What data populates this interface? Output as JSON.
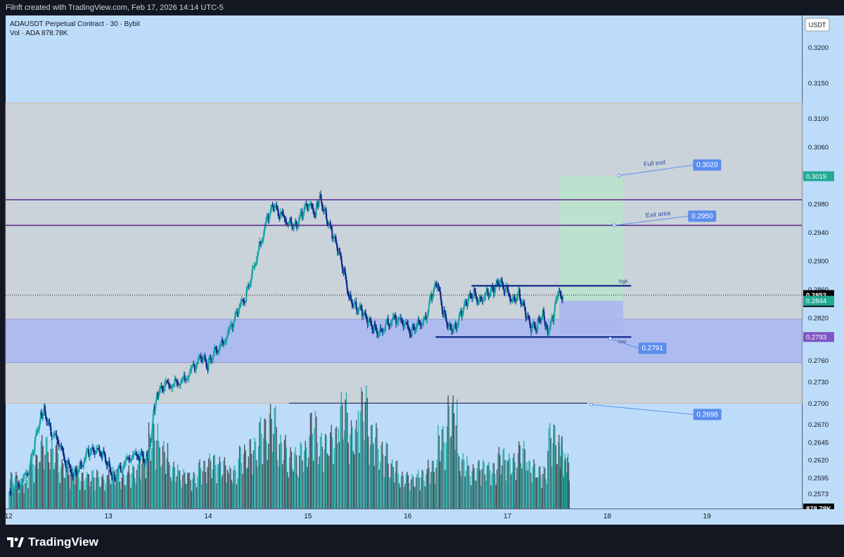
{
  "header": {
    "credit": "Filnft created with TradingView.com, Feb 17, 2026 14:14 UTC-5"
  },
  "legend": {
    "symbol_line": "ADAUSDT Perpetual Contract · 30 · Bybit",
    "volume_line": "Vol · ADA  878.78K"
  },
  "footer": {
    "brand": "TradingView",
    "brand_icon": "tradingview-logo-icon"
  },
  "colors": {
    "background": "#bcdcfa",
    "bull_candle": "#16a6a0",
    "bear_candle": "#0d2a8a",
    "buy_zone": "#ccd1d7",
    "demand_zone": "#aab8f2",
    "profit_box": "#b8e6cc",
    "loss_box": "#a9b6f0",
    "callout": "#5b8def",
    "price_label_current": "#000000",
    "price_label_green": "#22ab94",
    "price_label_purple": "#7e57c2",
    "resistance_line": "#5c2a8a",
    "range_line": "#0d2a8a"
  },
  "chart_data": {
    "type": "candlestick",
    "symbol": "ADAUSDT Perpetual Contract",
    "timeframe": "30",
    "exchange": "Bybit",
    "currency_button": "USDT",
    "y_range": [
      0.2552,
      0.3245
    ],
    "y_ticks": [
      "0.3200",
      "0.3150",
      "0.3100",
      "0.3060",
      "0.3020",
      "0.2980",
      "0.2940",
      "0.2900",
      "0.2860",
      "0.2820",
      "0.2790",
      "0.2760",
      "0.2730",
      "0.2700",
      "0.2670",
      "0.2645",
      "0.2620",
      "0.2595",
      "0.2573"
    ],
    "x_range": [
      11.97,
      19.95
    ],
    "x_ticks": [
      {
        "label": "12",
        "value": 12
      },
      {
        "label": "13",
        "value": 13
      },
      {
        "label": "14",
        "value": 14
      },
      {
        "label": "15",
        "value": 15
      },
      {
        "label": "16",
        "value": 16
      },
      {
        "label": "17",
        "value": 17
      },
      {
        "label": "18",
        "value": 18
      },
      {
        "label": "19",
        "value": 19
      }
    ],
    "price_path": [
      [
        12.0,
        0.2575
      ],
      [
        12.1,
        0.2583
      ],
      [
        12.2,
        0.26
      ],
      [
        12.26,
        0.264
      ],
      [
        12.32,
        0.268
      ],
      [
        12.36,
        0.2692
      ],
      [
        12.42,
        0.2662
      ],
      [
        12.5,
        0.2645
      ],
      [
        12.58,
        0.2615
      ],
      [
        12.66,
        0.26
      ],
      [
        12.72,
        0.2612
      ],
      [
        12.8,
        0.263
      ],
      [
        12.86,
        0.2632
      ],
      [
        12.94,
        0.263
      ],
      [
        13.0,
        0.2615
      ],
      [
        13.06,
        0.2595
      ],
      [
        13.12,
        0.2607
      ],
      [
        13.22,
        0.2622
      ],
      [
        13.32,
        0.2627
      ],
      [
        13.38,
        0.262
      ],
      [
        13.42,
        0.264
      ],
      [
        13.46,
        0.269
      ],
      [
        13.5,
        0.2712
      ],
      [
        13.56,
        0.2724
      ],
      [
        13.66,
        0.2728
      ],
      [
        13.76,
        0.2734
      ],
      [
        13.86,
        0.275
      ],
      [
        13.94,
        0.2764
      ],
      [
        14.0,
        0.2752
      ],
      [
        14.06,
        0.2772
      ],
      [
        14.14,
        0.2784
      ],
      [
        14.24,
        0.2807
      ],
      [
        14.3,
        0.2829
      ],
      [
        14.38,
        0.2849
      ],
      [
        14.44,
        0.2882
      ],
      [
        14.52,
        0.2922
      ],
      [
        14.6,
        0.296
      ],
      [
        14.66,
        0.2977
      ],
      [
        14.72,
        0.2965
      ],
      [
        14.82,
        0.2955
      ],
      [
        14.88,
        0.295
      ],
      [
        14.94,
        0.2965
      ],
      [
        15.0,
        0.2978
      ],
      [
        15.08,
        0.2968
      ],
      [
        15.12,
        0.2992
      ],
      [
        15.18,
        0.2966
      ],
      [
        15.24,
        0.294
      ],
      [
        15.3,
        0.2917
      ],
      [
        15.36,
        0.2887
      ],
      [
        15.42,
        0.2849
      ],
      [
        15.48,
        0.2837
      ],
      [
        15.54,
        0.2829
      ],
      [
        15.6,
        0.2815
      ],
      [
        15.66,
        0.2806
      ],
      [
        15.72,
        0.28
      ],
      [
        15.8,
        0.2813
      ],
      [
        15.88,
        0.2818
      ],
      [
        15.96,
        0.2812
      ],
      [
        16.04,
        0.28
      ],
      [
        16.1,
        0.2813
      ],
      [
        16.18,
        0.2817
      ],
      [
        16.24,
        0.285
      ],
      [
        16.3,
        0.2868
      ],
      [
        16.36,
        0.2827
      ],
      [
        16.42,
        0.2808
      ],
      [
        16.48,
        0.2806
      ],
      [
        16.54,
        0.2826
      ],
      [
        16.6,
        0.2842
      ],
      [
        16.66,
        0.2855
      ],
      [
        16.72,
        0.2845
      ],
      [
        16.8,
        0.2855
      ],
      [
        16.86,
        0.2858
      ],
      [
        16.92,
        0.2869
      ],
      [
        16.98,
        0.2861
      ],
      [
        17.06,
        0.2846
      ],
      [
        17.12,
        0.2854
      ],
      [
        17.18,
        0.2828
      ],
      [
        17.24,
        0.2805
      ],
      [
        17.3,
        0.2809
      ],
      [
        17.36,
        0.2829
      ],
      [
        17.4,
        0.28
      ],
      [
        17.46,
        0.2818
      ],
      [
        17.5,
        0.2851
      ],
      [
        17.56,
        0.2852
      ]
    ],
    "volume_scale_max": 1,
    "volume": [
      [
        12.0,
        0.3
      ],
      [
        12.1,
        0.25
      ],
      [
        12.2,
        0.45
      ],
      [
        12.3,
        0.6
      ],
      [
        12.4,
        0.55
      ],
      [
        12.5,
        0.4
      ],
      [
        12.6,
        0.35
      ],
      [
        12.7,
        0.3
      ],
      [
        12.8,
        0.32
      ],
      [
        12.9,
        0.28
      ],
      [
        13.0,
        0.34
      ],
      [
        13.1,
        0.3
      ],
      [
        13.2,
        0.36
      ],
      [
        13.3,
        0.48
      ],
      [
        13.4,
        0.7
      ],
      [
        13.5,
        0.55
      ],
      [
        13.6,
        0.38
      ],
      [
        13.7,
        0.32
      ],
      [
        13.8,
        0.3
      ],
      [
        13.9,
        0.4
      ],
      [
        14.0,
        0.45
      ],
      [
        14.1,
        0.42
      ],
      [
        14.2,
        0.35
      ],
      [
        14.3,
        0.52
      ],
      [
        14.4,
        0.58
      ],
      [
        14.5,
        0.75
      ],
      [
        14.6,
        0.85
      ],
      [
        14.7,
        0.6
      ],
      [
        14.8,
        0.5
      ],
      [
        14.9,
        0.55
      ],
      [
        15.0,
        0.8
      ],
      [
        15.1,
        0.62
      ],
      [
        15.2,
        0.68
      ],
      [
        15.3,
        0.95
      ],
      [
        15.4,
        0.72
      ],
      [
        15.5,
        1.0
      ],
      [
        15.6,
        0.7
      ],
      [
        15.7,
        0.55
      ],
      [
        15.8,
        0.4
      ],
      [
        15.9,
        0.3
      ],
      [
        16.0,
        0.28
      ],
      [
        16.1,
        0.32
      ],
      [
        16.2,
        0.4
      ],
      [
        16.3,
        0.68
      ],
      [
        16.4,
        0.92
      ],
      [
        16.5,
        0.45
      ],
      [
        16.6,
        0.36
      ],
      [
        16.7,
        0.4
      ],
      [
        16.8,
        0.38
      ],
      [
        16.9,
        0.5
      ],
      [
        17.0,
        0.45
      ],
      [
        17.1,
        0.55
      ],
      [
        17.2,
        0.4
      ],
      [
        17.3,
        0.35
      ],
      [
        17.4,
        0.7
      ],
      [
        17.5,
        0.6
      ],
      [
        17.56,
        0.45
      ]
    ],
    "zones": [
      {
        "kind": "buy-zone",
        "from": 0.27,
        "to": 0.3122
      },
      {
        "kind": "demand-zone",
        "from": 0.2757,
        "to": 0.2818
      }
    ],
    "horizontal_lines": [
      {
        "kind": "resistance",
        "price": 0.2986
      },
      {
        "kind": "resistance",
        "price": 0.295
      },
      {
        "kind": "current-price-dotted",
        "price": 0.2852
      },
      {
        "kind": "range-high",
        "price": 0.2865,
        "x_from": 16.64,
        "x_to": 18.24,
        "label": "high"
      },
      {
        "kind": "range-low",
        "price": 0.2793,
        "x_from": 16.28,
        "x_to": 18.24,
        "label": "low"
      },
      {
        "kind": "target-line",
        "price": 0.27,
        "x_from": 14.81,
        "x_to": 17.8
      }
    ],
    "position": {
      "x_from": 17.52,
      "x_to": 18.16,
      "entry": 0.2844,
      "target": 0.3019,
      "stop": 0.2797
    },
    "callouts": [
      {
        "text": "Full exit",
        "price_label": "0.3020",
        "price": 0.302,
        "x": 18.12
      },
      {
        "text": "Exit area",
        "price_label": "0.2950",
        "price": 0.295,
        "x": 18.07
      },
      {
        "text": "",
        "price_label": "0.2791",
        "price": 0.2791,
        "x": 18.03
      },
      {
        "text": "",
        "price_label": "0.2698",
        "price": 0.2698,
        "x": 17.84
      }
    ],
    "axis_labels": [
      {
        "text": "0.3019",
        "price": 0.3019,
        "style": "green"
      },
      {
        "text": "0.2852",
        "price": 0.2852,
        "style": "current",
        "sub": "15:01"
      },
      {
        "text": "0.2844",
        "price": 0.2844,
        "style": "green"
      },
      {
        "text": "0.2793",
        "price": 0.2793,
        "style": "purple"
      },
      {
        "text": "878.78K",
        "price": 0.2554,
        "style": "current"
      }
    ]
  }
}
